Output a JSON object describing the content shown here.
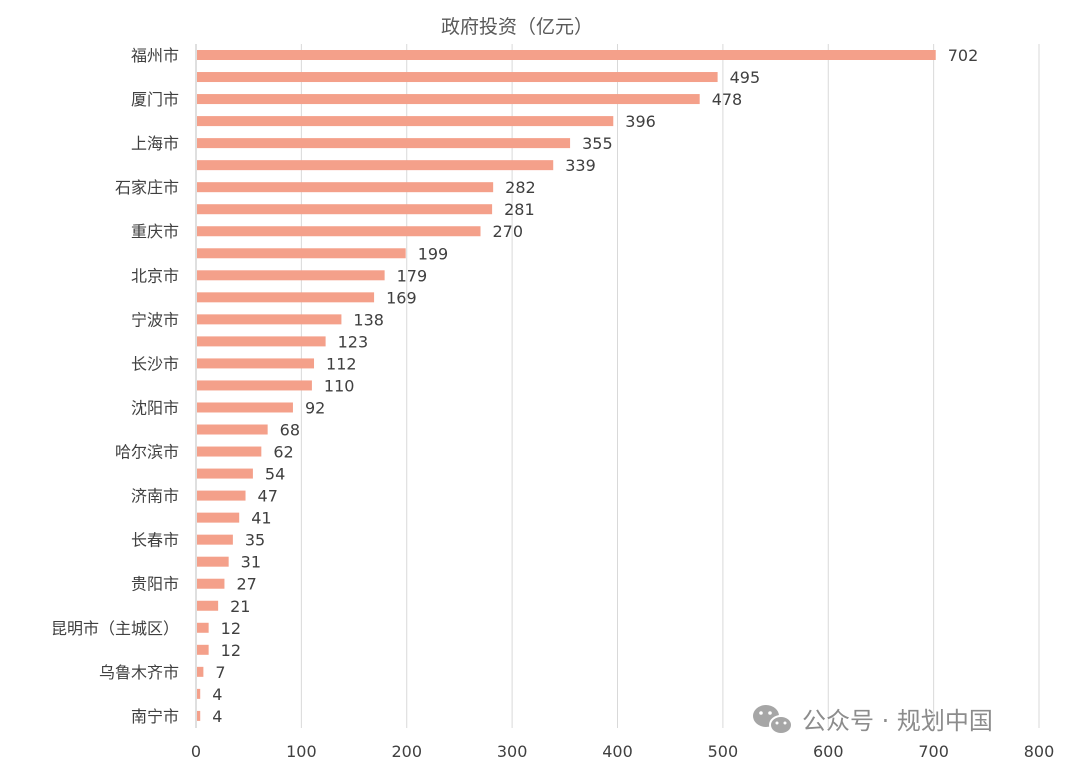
{
  "chart_data": {
    "type": "bar",
    "orientation": "horizontal",
    "title": "政府投资（亿元）",
    "xlabel": "",
    "ylabel": "",
    "xlim": [
      0,
      800
    ],
    "xticks": [
      0,
      100,
      200,
      300,
      400,
      500,
      600,
      700,
      800
    ],
    "grid": true,
    "bar_color": "#f4a08a",
    "categories": [
      "福州市",
      "",
      "厦门市",
      "",
      "上海市",
      "",
      "石家庄市",
      "",
      "重庆市",
      "",
      "北京市",
      "",
      "宁波市",
      "",
      "长沙市",
      "",
      "沈阳市",
      "",
      "哈尔滨市",
      "",
      "济南市",
      "",
      "长春市",
      "",
      "贵阳市",
      "",
      "昆明市（主城区）",
      "",
      "乌鲁木齐市",
      "",
      "南宁市"
    ],
    "values": [
      702,
      495,
      478,
      396,
      355,
      339,
      282,
      281,
      270,
      199,
      179,
      169,
      138,
      123,
      112,
      110,
      92,
      68,
      62,
      54,
      47,
      41,
      35,
      31,
      27,
      21,
      12,
      12,
      7,
      4,
      4
    ]
  },
  "watermark": {
    "text": "公众号 · 规划中国",
    "icon": "wechat-icon"
  }
}
